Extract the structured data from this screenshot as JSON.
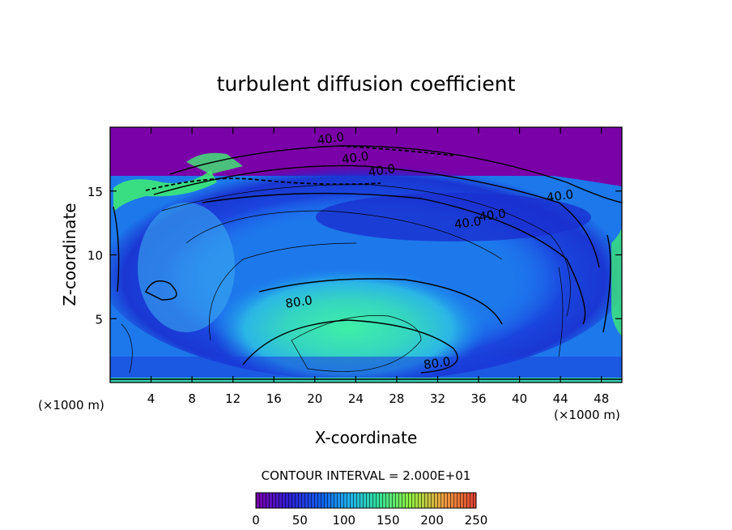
{
  "chart_data": {
    "type": "heatmap",
    "title": "turbulent diffusion coefficient",
    "xlabel": "X-coordinate",
    "ylabel": "Z-coordinate",
    "x_unit_label": "(×1000 m)",
    "x_unit_label_right": "(×1000 m)",
    "xlim": [
      0,
      50
    ],
    "ylim": [
      0,
      20
    ],
    "x_ticks": [
      "4",
      "8",
      "12",
      "16",
      "20",
      "24",
      "28",
      "32",
      "36",
      "40",
      "44",
      "48"
    ],
    "y_ticks": [
      "5",
      "10",
      "15"
    ],
    "contour_interval_text": "CONTOUR INTERVAL = 2.000E+01",
    "contour_labels": [
      {
        "text": "40.0",
        "x": 21.6,
        "z": 18.8
      },
      {
        "text": "40.0",
        "x": 24.0,
        "z": 17.3
      },
      {
        "text": "40.0",
        "x": 26.6,
        "z": 16.3
      },
      {
        "text": "40.0",
        "x": 44.0,
        "z": 14.3
      },
      {
        "text": "40.0",
        "x": 37.4,
        "z": 12.8
      },
      {
        "text": "40.0",
        "x": 35.0,
        "z": 12.2
      },
      {
        "text": "80.0",
        "x": 18.5,
        "z": 6.0
      },
      {
        "text": "80.0",
        "x": 32.0,
        "z": 1.2
      }
    ],
    "colorbar": {
      "min": 0,
      "max": 250,
      "tick_labels": [
        "0",
        "50",
        "100",
        "150",
        "200",
        "250"
      ],
      "colors": [
        "#7a00a8",
        "#2e1fd6",
        "#1060f0",
        "#20b0f0",
        "#30e0a0",
        "#90f040",
        "#f0a040",
        "#e04030"
      ]
    }
  }
}
